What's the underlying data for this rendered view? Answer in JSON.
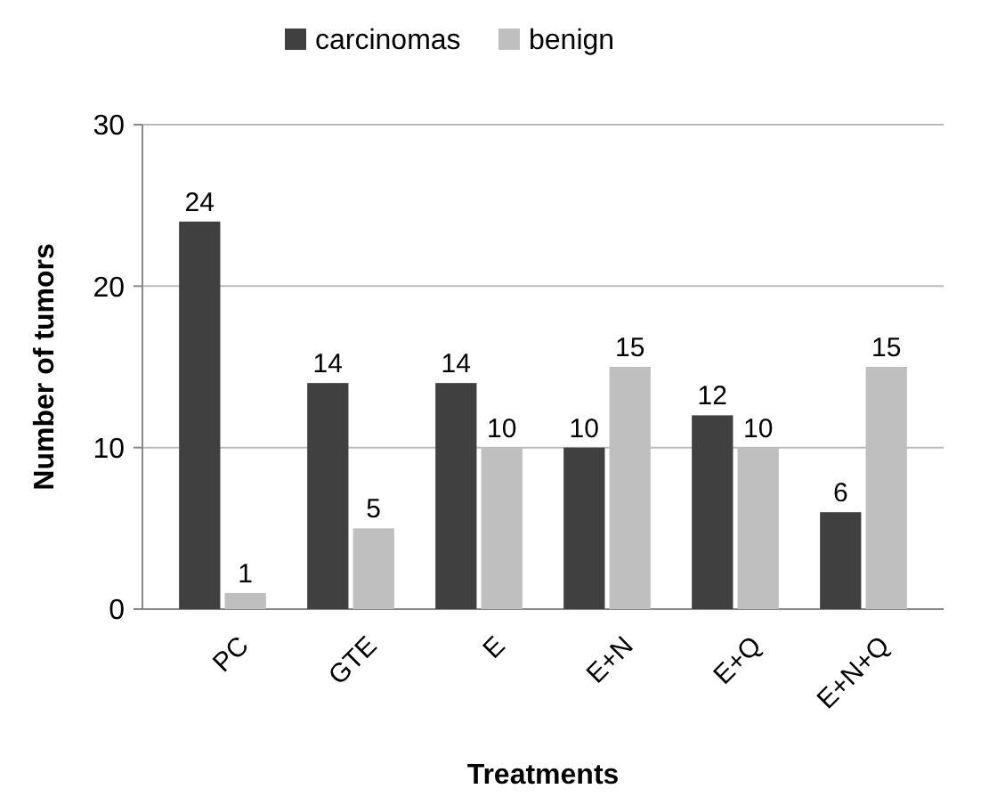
{
  "chart_data": {
    "type": "bar",
    "xlabel": "Treatments",
    "ylabel": "Number of tumors",
    "categories": [
      "PC",
      "GTE",
      "E",
      "E+N",
      "E+Q",
      "E+N+Q"
    ],
    "series": [
      {
        "name": "carcinomas",
        "color": "#404040",
        "values": [
          24,
          14,
          14,
          10,
          12,
          6
        ]
      },
      {
        "name": "benign",
        "color": "#bfbfbf",
        "values": [
          1,
          5,
          10,
          15,
          10,
          15
        ]
      }
    ],
    "ylim": [
      0,
      30
    ],
    "yticks": [
      0,
      10,
      20,
      30
    ],
    "grid": "y",
    "legend": "top",
    "data_labels": true
  }
}
